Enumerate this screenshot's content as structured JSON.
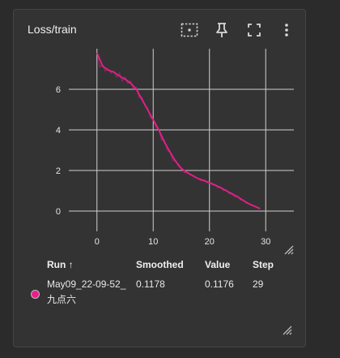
{
  "card": {
    "title": "Loss/train",
    "toolbar": {
      "icons": [
        "fit-domain-icon",
        "pin-icon",
        "fullscreen-icon",
        "more-vert-icon"
      ]
    }
  },
  "chart_data": {
    "type": "line",
    "title": "",
    "xlabel": "",
    "ylabel": "",
    "xlim": [
      -5,
      35
    ],
    "ylim": [
      -1,
      8
    ],
    "x_ticks": [
      0,
      10,
      20,
      30
    ],
    "y_ticks": [
      0,
      2,
      4,
      6
    ],
    "grid": true,
    "series": [
      {
        "name": "May09_22-09-52_九点六",
        "color": "#e91e8c",
        "raw": [
          [
            0,
            7.8
          ],
          [
            0.5,
            7.1
          ],
          [
            1,
            7.2
          ],
          [
            1.5,
            6.9
          ],
          [
            2,
            7.0
          ],
          [
            2.5,
            6.8
          ],
          [
            3,
            6.9
          ],
          [
            3.5,
            6.6
          ],
          [
            4,
            6.8
          ],
          [
            4.5,
            6.4
          ],
          [
            5,
            6.6
          ],
          [
            5.5,
            6.3
          ],
          [
            6,
            6.4
          ],
          [
            6.5,
            6.0
          ],
          [
            7,
            6.1
          ],
          [
            7.5,
            5.6
          ],
          [
            8,
            5.6
          ],
          [
            8.5,
            5.2
          ],
          [
            9,
            5.1
          ],
          [
            9.5,
            4.6
          ],
          [
            10,
            4.5
          ],
          [
            10.5,
            4.1
          ],
          [
            11,
            4.0
          ],
          [
            11.5,
            3.5
          ],
          [
            12,
            3.5
          ],
          [
            12.5,
            3.0
          ],
          [
            13,
            2.9
          ],
          [
            13.5,
            2.5
          ],
          [
            14,
            2.5
          ],
          [
            14.5,
            2.2
          ],
          [
            15,
            2.1
          ],
          [
            15.5,
            1.9
          ],
          [
            16,
            1.9
          ],
          [
            16.5,
            1.8
          ],
          [
            17,
            1.75
          ],
          [
            17.5,
            1.65
          ],
          [
            18,
            1.6
          ],
          [
            18.5,
            1.5
          ],
          [
            19,
            1.55
          ],
          [
            19.5,
            1.4
          ],
          [
            20,
            1.4
          ],
          [
            20.5,
            1.3
          ],
          [
            21,
            1.3
          ],
          [
            21.5,
            1.15
          ],
          [
            22,
            1.2
          ],
          [
            22.5,
            1.0
          ],
          [
            23,
            1.05
          ],
          [
            23.5,
            0.85
          ],
          [
            24,
            0.9
          ],
          [
            24.5,
            0.7
          ],
          [
            25,
            0.75
          ],
          [
            25.5,
            0.55
          ],
          [
            26,
            0.55
          ],
          [
            26.5,
            0.4
          ],
          [
            27,
            0.38
          ],
          [
            27.5,
            0.28
          ],
          [
            28,
            0.25
          ],
          [
            28.5,
            0.18
          ],
          [
            29,
            0.1176
          ]
        ],
        "smoothed": [
          [
            0,
            7.8
          ],
          [
            1,
            7.15
          ],
          [
            2,
            6.95
          ],
          [
            3,
            6.85
          ],
          [
            4,
            6.65
          ],
          [
            5,
            6.5
          ],
          [
            6,
            6.3
          ],
          [
            7,
            6.0
          ],
          [
            8,
            5.5
          ],
          [
            9,
            5.0
          ],
          [
            10,
            4.5
          ],
          [
            11,
            4.0
          ],
          [
            12,
            3.4
          ],
          [
            13,
            2.9
          ],
          [
            14,
            2.45
          ],
          [
            15,
            2.1
          ],
          [
            16,
            1.9
          ],
          [
            17,
            1.75
          ],
          [
            18,
            1.6
          ],
          [
            19,
            1.5
          ],
          [
            20,
            1.4
          ],
          [
            21,
            1.28
          ],
          [
            22,
            1.15
          ],
          [
            23,
            1.0
          ],
          [
            24,
            0.85
          ],
          [
            25,
            0.7
          ],
          [
            26,
            0.52
          ],
          [
            27,
            0.36
          ],
          [
            28,
            0.24
          ],
          [
            29,
            0.1178
          ]
        ]
      }
    ]
  },
  "table": {
    "headers": {
      "run": "Run ↑",
      "smoothed": "Smoothed",
      "value": "Value",
      "step": "Step"
    },
    "rows": [
      {
        "run_line1": "May09_22-09-52_",
        "run_line2": "九点六",
        "smoothed": "0.1178",
        "value": "0.1176",
        "step": "29",
        "color": "#e91e8c"
      }
    ]
  }
}
